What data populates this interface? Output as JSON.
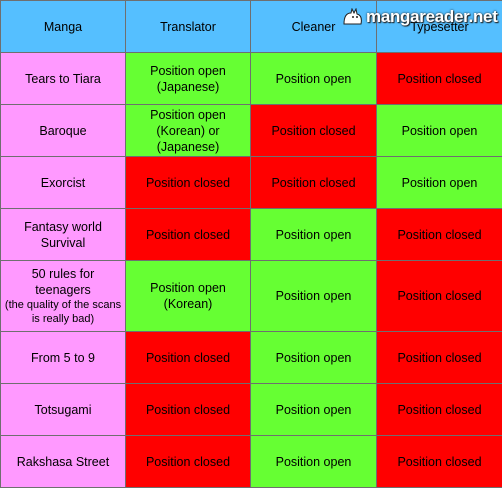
{
  "header": {
    "manga": "Manga",
    "translator": "Translator",
    "cleaner": "Cleaner",
    "typesetter": "Typesetter"
  },
  "watermark": "mangareader.net",
  "rows": [
    {
      "manga": "Tears to Tiara",
      "translator": "Position open (Japanese)",
      "cleaner": "Position open",
      "typesetter": "Position closed"
    },
    {
      "manga": "Baroque",
      "translator": "Position open (Korean) or (Japanese)",
      "cleaner": "Position closed",
      "typesetter": "Position open"
    },
    {
      "manga": "Exorcist",
      "translator": "Position closed",
      "cleaner": "Position closed",
      "typesetter": "Position open"
    },
    {
      "manga": "Fantasy world Survival",
      "translator": "Position closed",
      "cleaner": "Position open",
      "typesetter": "Position closed"
    },
    {
      "manga": "50 rules for teenagers",
      "manga_note": "(the quality of the scans is really bad)",
      "translator": "Position open (Korean)",
      "cleaner": "Position open",
      "typesetter": "Position closed"
    },
    {
      "manga": "From 5 to 9",
      "translator": "Position closed",
      "cleaner": "Position open",
      "typesetter": "Position closed"
    },
    {
      "manga": "Totsugami",
      "translator": "Position closed",
      "cleaner": "Position open",
      "typesetter": "Position closed"
    },
    {
      "manga": "Rakshasa Street",
      "translator": "Position closed",
      "cleaner": "Position open",
      "typesetter": "Position closed"
    }
  ],
  "colors": {
    "header": "#55bfff",
    "manga": "#ff99ff",
    "open": "#66ff33",
    "closed": "#ff0000"
  }
}
